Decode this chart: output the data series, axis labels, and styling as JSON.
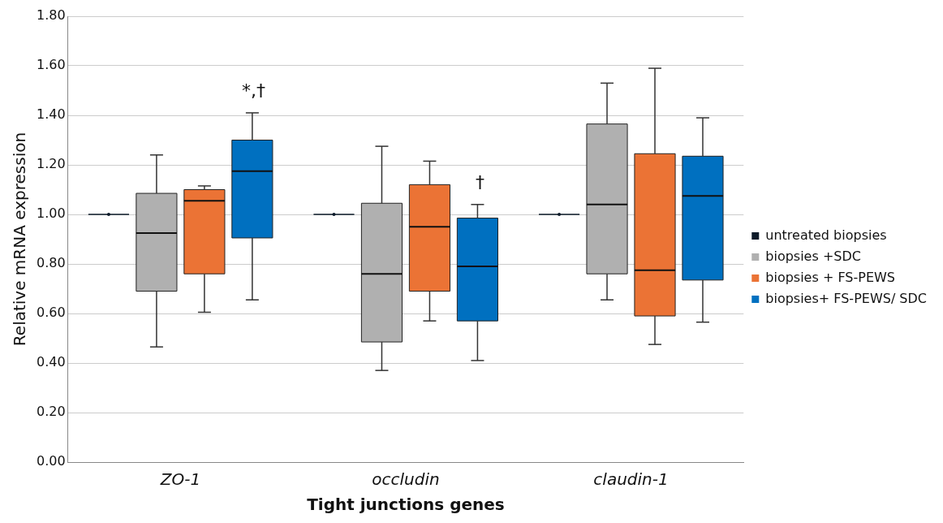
{
  "chart_data": {
    "type": "box",
    "xlabel": "Tight junctions genes",
    "ylabel": "Relative mRNA expression",
    "categories": [
      "ZO-1",
      "occludin",
      "claudin-1"
    ],
    "series": [
      {
        "name": "untreated biopsies",
        "color": "#0d1b2a",
        "boxes": [
          {
            "low": 1.0,
            "q1": 1.0,
            "median": 1.0,
            "q3": 1.0,
            "high": 1.0
          },
          {
            "low": 1.0,
            "q1": 1.0,
            "median": 1.0,
            "q3": 1.0,
            "high": 1.0
          },
          {
            "low": 1.0,
            "q1": 1.0,
            "median": 1.0,
            "q3": 1.0,
            "high": 1.0
          }
        ]
      },
      {
        "name": "biopsies +SDC",
        "color": "#b0b0b0",
        "boxes": [
          {
            "low": 0.465,
            "q1": 0.69,
            "median": 0.925,
            "q3": 1.085,
            "high": 1.24
          },
          {
            "low": 0.37,
            "q1": 0.485,
            "median": 0.76,
            "q3": 1.045,
            "high": 1.275
          },
          {
            "low": 0.655,
            "q1": 0.76,
            "median": 1.04,
            "q3": 1.365,
            "high": 1.53
          }
        ]
      },
      {
        "name": "biopsies + FS-PEWS",
        "color": "#eb7335",
        "boxes": [
          {
            "low": 0.605,
            "q1": 0.76,
            "median": 1.055,
            "q3": 1.1,
            "high": 1.115
          },
          {
            "low": 0.57,
            "q1": 0.69,
            "median": 0.95,
            "q3": 1.12,
            "high": 1.215
          },
          {
            "low": 0.475,
            "q1": 0.59,
            "median": 0.775,
            "q3": 1.245,
            "high": 1.59
          }
        ]
      },
      {
        "name": "biopsies+ FS-PEWS/ SDC",
        "color": "#0070c0",
        "boxes": [
          {
            "low": 0.655,
            "q1": 0.905,
            "median": 1.175,
            "q3": 1.3,
            "high": 1.41
          },
          {
            "low": 0.41,
            "q1": 0.57,
            "median": 0.79,
            "q3": 0.985,
            "high": 1.04
          },
          {
            "low": 0.565,
            "q1": 0.735,
            "median": 1.075,
            "q3": 1.235,
            "high": 1.39
          }
        ]
      }
    ],
    "ylim": [
      0,
      1.8
    ],
    "yticks": [
      {
        "value": 0,
        "label": "0.00"
      },
      {
        "value": 0.2,
        "label": "0.20"
      },
      {
        "value": 0.4,
        "label": "0.40"
      },
      {
        "value": 0.6,
        "label": "0.60"
      },
      {
        "value": 0.8,
        "label": "0.80"
      },
      {
        "value": 1.0,
        "label": "1.00"
      },
      {
        "value": 1.2,
        "label": "1.20"
      },
      {
        "value": 1.4,
        "label": "1.40"
      },
      {
        "value": 1.6,
        "label": "1.60"
      },
      {
        "value": 1.8,
        "label": "1.80"
      }
    ],
    "grid": "y",
    "legend": "right",
    "annotations": [
      "*,†",
      "†"
    ]
  }
}
